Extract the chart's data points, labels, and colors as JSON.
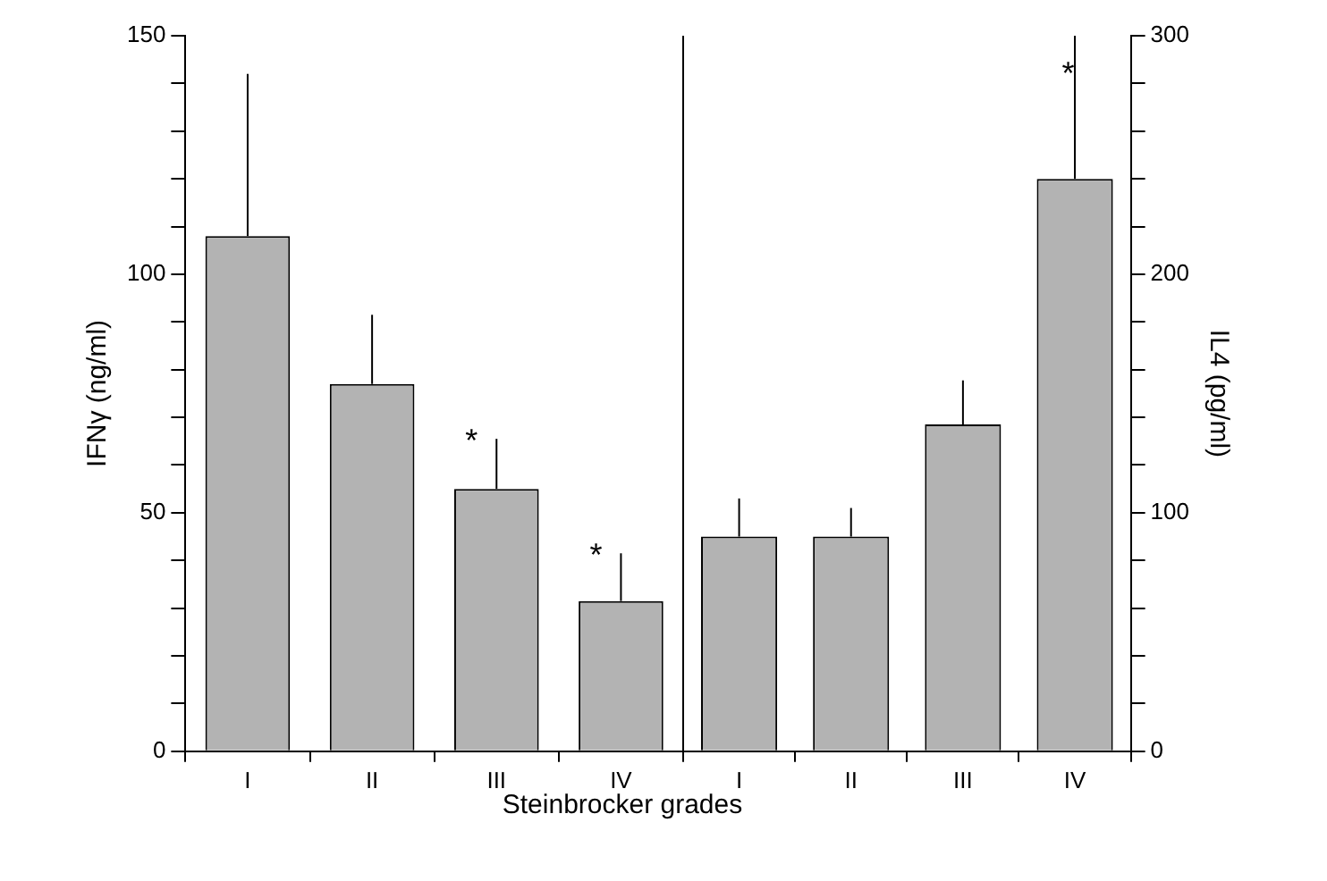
{
  "chart_data": [
    {
      "type": "bar",
      "xlabel": "Steinbrocker grades",
      "ylabel": "IFNγ (ng/ml)",
      "categories": [
        "I",
        "II",
        "III",
        "IV"
      ],
      "series": [
        {
          "color": "#b3b3b3",
          "values": [
            108,
            77,
            55,
            31.5
          ],
          "errors": [
            [
              108,
              142
            ],
            [
              77,
              91.5
            ],
            [
              55,
              65.5
            ],
            [
              31.5,
              41.5
            ]
          ],
          "value_labels": [
            null,
            null,
            "*",
            "*"
          ]
        }
      ],
      "ylim": [
        0,
        150
      ],
      "yticks": [
        0,
        {
          "value": 10,
          "label": null
        },
        {
          "value": 20,
          "label": null
        },
        {
          "value": 30,
          "label": null
        },
        {
          "value": 40,
          "label": null
        },
        50,
        {
          "value": 60,
          "label": null
        },
        {
          "value": 70,
          "label": null
        },
        {
          "value": 80,
          "label": null
        },
        {
          "value": 90,
          "label": null
        },
        100,
        {
          "value": 110,
          "label": null
        },
        {
          "value": 120,
          "label": null
        },
        {
          "value": 130,
          "label": null
        },
        {
          "value": 140,
          "label": null
        },
        150
      ],
      "grid": false,
      "legend": false
    },
    {
      "type": "bar",
      "y2label": "IL4 (pg/ml)",
      "categories": [
        "I",
        "II",
        "III",
        "IV"
      ],
      "series": [
        {
          "color": "#b3b3b3",
          "axis": "y2",
          "values": [
            90,
            90,
            137,
            240
          ],
          "errors": [
            [
              90,
              106
            ],
            [
              90,
              102
            ],
            [
              137,
              155.5
            ],
            [
              240,
              300
            ]
          ]
        }
      ],
      "annotations": [
        "*"
      ],
      "y2lim": [
        0,
        300
      ],
      "y2ticks": [
        0,
        {
          "value": 20,
          "label": null
        },
        {
          "value": 40,
          "label": null
        },
        {
          "value": 60,
          "label": null
        },
        {
          "value": 80,
          "label": null
        },
        100,
        {
          "value": 120,
          "label": null
        },
        {
          "value": 140,
          "label": null
        },
        {
          "value": 160,
          "label": null
        },
        {
          "value": 180,
          "label": null
        },
        200,
        {
          "value": 220,
          "label": null
        },
        {
          "value": 240,
          "label": null
        },
        {
          "value": 260,
          "label": null
        },
        {
          "value": 280,
          "label": null
        },
        300
      ],
      "grid": false,
      "legend": false
    }
  ]
}
